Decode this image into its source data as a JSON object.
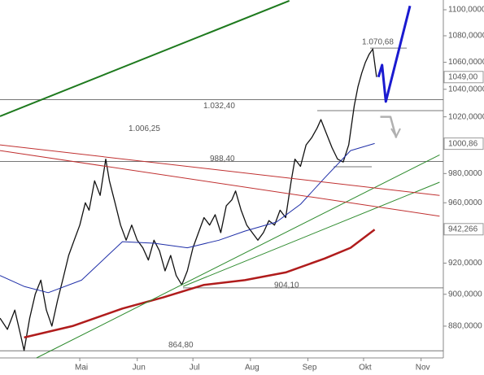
{
  "chart_data": {
    "type": "line",
    "log": true,
    "xlim": [
      0,
      239
    ],
    "ylim": [
      860.5,
      1107.6
    ],
    "xticks": [
      {
        "value": 43,
        "label": "Mai"
      },
      {
        "value": 74,
        "label": "Jun"
      },
      {
        "value": 104,
        "label": "Jul"
      },
      {
        "value": 135,
        "label": "Aug"
      },
      {
        "value": 166,
        "label": "Sep"
      },
      {
        "value": 196,
        "label": "Okt"
      },
      {
        "value": 227,
        "label": "Nov"
      }
    ],
    "yticks": [
      {
        "value": 1100,
        "label": "1100,0000"
      },
      {
        "value": 1080,
        "label": "1080,0000"
      },
      {
        "value": 1060,
        "label": "1060,0000"
      },
      {
        "value": 1040,
        "label": "1040,0000"
      },
      {
        "value": 1020,
        "label": "1020,0000"
      },
      {
        "value": 980,
        "label": "980,0000"
      },
      {
        "value": 960,
        "label": "960,0000"
      },
      {
        "value": 920,
        "label": "920,0000"
      },
      {
        "value": 900,
        "label": "900,0000"
      },
      {
        "value": 880,
        "label": "880,0000"
      }
    ],
    "series": [
      {
        "color": "#111111",
        "width": 1.3,
        "x": [
          0,
          4,
          8,
          11,
          13,
          16,
          19,
          22,
          25,
          28,
          31,
          34,
          37,
          40,
          43,
          46,
          48,
          51,
          54,
          57,
          59,
          62,
          65,
          68,
          71,
          74,
          77,
          80,
          83,
          86,
          89,
          92,
          95,
          98,
          101,
          104,
          107,
          110,
          113,
          116,
          119,
          122,
          125,
          127,
          130,
          133,
          136,
          139,
          142,
          145,
          148,
          151,
          154,
          157,
          159,
          162,
          165,
          168,
          171,
          173,
          176,
          179,
          182,
          185,
          188,
          191,
          193,
          195,
          197,
          199,
          201,
          203
        ],
        "values": [
          885,
          878,
          890,
          875,
          865,
          885,
          900,
          909,
          890,
          880,
          896,
          910,
          925,
          935,
          945,
          960,
          955,
          975,
          965,
          990,
          975,
          960,
          945,
          935,
          945,
          935,
          930,
          922,
          935,
          928,
          915,
          925,
          912,
          906,
          915,
          930,
          940,
          950,
          945,
          952,
          940,
          958,
          962,
          968,
          955,
          945,
          940,
          935,
          940,
          948,
          945,
          955,
          950,
          975,
          990,
          985,
          1000,
          1005,
          1012,
          1018,
          1008,
          998,
          990,
          988,
          1000,
          1028,
          1042,
          1052,
          1060,
          1066,
          1070,
          1049
        ]
      },
      {
        "color": "#1f2fa8",
        "width": 1,
        "x": [
          0,
          13,
          26,
          44,
          66,
          83,
          101,
          118,
          132,
          149,
          162,
          175,
          189,
          202
        ],
        "values": [
          912,
          905,
          901,
          909,
          934,
          933,
          930,
          935,
          941,
          947,
          959,
          977,
          996,
          1001
        ]
      },
      {
        "color": "#b01c1c",
        "width": 2.5,
        "x": [
          13,
          39,
          66,
          88,
          110,
          132,
          154,
          175,
          189,
          202
        ],
        "values": [
          873,
          880,
          891,
          898,
          906,
          909,
          914,
          923,
          930,
          942
        ]
      },
      {
        "color": "#1e7a1e",
        "width": 2,
        "x": [
          0,
          156
        ],
        "values": [
          1020.4,
          1107
        ]
      },
      {
        "color": "#2e8b2e",
        "width": 1,
        "x": [
          19.7,
          237
        ],
        "values": [
          860.5,
          993
        ]
      },
      {
        "color": "#2e8b2e",
        "width": 1,
        "x": [
          98.7,
          237
        ],
        "values": [
          905,
          974
        ]
      },
      {
        "color": "#c03030",
        "width": 1,
        "x": [
          0,
          237
        ],
        "values": [
          1000,
          965
        ]
      },
      {
        "color": "#c03030",
        "width": 1,
        "x": [
          0,
          237
        ],
        "values": [
          996,
          951
        ]
      },
      {
        "color": "#1a1ad0",
        "width": 3,
        "x": [
          204,
          206,
          208,
          221
        ],
        "values": [
          1049,
          1058,
          1031,
          1103
        ]
      },
      {
        "color": "#b0b0b0",
        "width": 2.5,
        "x": [
          205,
          210.5,
          213.6
        ],
        "values": [
          1020,
          1020,
          1005
        ]
      }
    ],
    "levels": [
      {
        "value": 1070.68,
        "label": "1.070,68"
      },
      {
        "value": 1032.4,
        "label": "1.032,40"
      },
      {
        "value": 1006.25,
        "label": "1.006,25"
      },
      {
        "value": 988.4,
        "label": "988,40"
      },
      {
        "value": 904.1,
        "label": "904,10"
      },
      {
        "value": 864.8,
        "label": "864,80"
      }
    ],
    "last_values": [
      {
        "value": 1049,
        "label": "1049,00"
      },
      {
        "value": 1000.86,
        "label": "1000,86"
      },
      {
        "value": 942.266,
        "label": "942,266"
      }
    ]
  }
}
